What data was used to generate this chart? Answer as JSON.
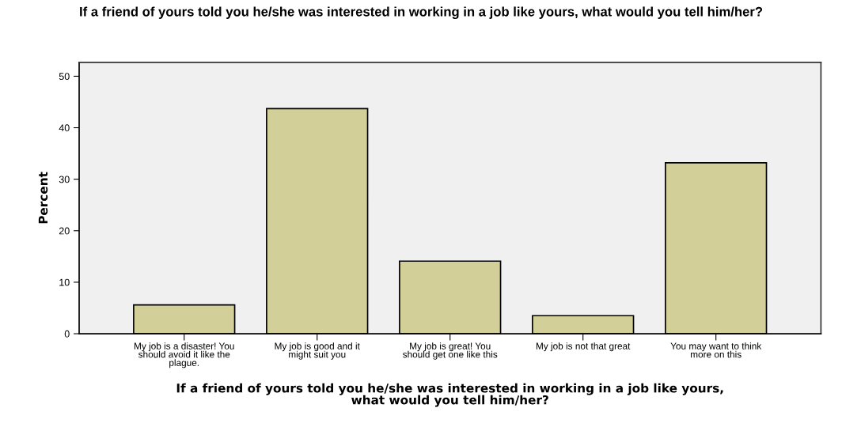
{
  "chart_data": {
    "type": "bar",
    "title": "If a friend of yours told you he/she was interested in working in a job like yours, what would you tell him/her?",
    "xlabel": "If a friend of yours told you he/she was interested in working in a job like yours, what would you tell him/her?",
    "ylabel": "Percent",
    "categories": [
      "My job is a disaster! You should avoid it like the plague.",
      "My job is good and it might suit you",
      "My job is great! You should get one like this",
      "My job is not that great",
      "You may want to think more on this"
    ],
    "values": [
      5.6,
      43.7,
      14.1,
      3.5,
      33.2
    ],
    "color": "#d3cf98",
    "ylim": [
      0,
      52.7
    ],
    "yticks": [
      0,
      10,
      20,
      30,
      40,
      50
    ],
    "grid": false,
    "legend": false
  }
}
